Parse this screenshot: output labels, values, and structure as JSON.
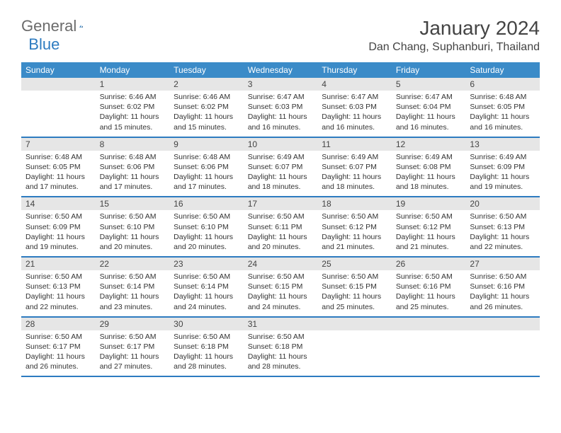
{
  "logo": {
    "general": "General",
    "blue": "Blue"
  },
  "title": "January 2024",
  "location": "Dan Chang, Suphanburi, Thailand",
  "day_names": [
    "Sunday",
    "Monday",
    "Tuesday",
    "Wednesday",
    "Thursday",
    "Friday",
    "Saturday"
  ],
  "colors": {
    "header_bg": "#3b8bc8",
    "header_text": "#ffffff",
    "daynum_bg": "#e6e6e6",
    "week_border": "#2d7bc0",
    "text": "#333333"
  },
  "weeks": [
    [
      {
        "num": "",
        "lines": []
      },
      {
        "num": "1",
        "lines": [
          "Sunrise: 6:46 AM",
          "Sunset: 6:02 PM",
          "Daylight: 11 hours and 15 minutes."
        ]
      },
      {
        "num": "2",
        "lines": [
          "Sunrise: 6:46 AM",
          "Sunset: 6:02 PM",
          "Daylight: 11 hours and 15 minutes."
        ]
      },
      {
        "num": "3",
        "lines": [
          "Sunrise: 6:47 AM",
          "Sunset: 6:03 PM",
          "Daylight: 11 hours and 16 minutes."
        ]
      },
      {
        "num": "4",
        "lines": [
          "Sunrise: 6:47 AM",
          "Sunset: 6:03 PM",
          "Daylight: 11 hours and 16 minutes."
        ]
      },
      {
        "num": "5",
        "lines": [
          "Sunrise: 6:47 AM",
          "Sunset: 6:04 PM",
          "Daylight: 11 hours and 16 minutes."
        ]
      },
      {
        "num": "6",
        "lines": [
          "Sunrise: 6:48 AM",
          "Sunset: 6:05 PM",
          "Daylight: 11 hours and 16 minutes."
        ]
      }
    ],
    [
      {
        "num": "7",
        "lines": [
          "Sunrise: 6:48 AM",
          "Sunset: 6:05 PM",
          "Daylight: 11 hours and 17 minutes."
        ]
      },
      {
        "num": "8",
        "lines": [
          "Sunrise: 6:48 AM",
          "Sunset: 6:06 PM",
          "Daylight: 11 hours and 17 minutes."
        ]
      },
      {
        "num": "9",
        "lines": [
          "Sunrise: 6:48 AM",
          "Sunset: 6:06 PM",
          "Daylight: 11 hours and 17 minutes."
        ]
      },
      {
        "num": "10",
        "lines": [
          "Sunrise: 6:49 AM",
          "Sunset: 6:07 PM",
          "Daylight: 11 hours and 18 minutes."
        ]
      },
      {
        "num": "11",
        "lines": [
          "Sunrise: 6:49 AM",
          "Sunset: 6:07 PM",
          "Daylight: 11 hours and 18 minutes."
        ]
      },
      {
        "num": "12",
        "lines": [
          "Sunrise: 6:49 AM",
          "Sunset: 6:08 PM",
          "Daylight: 11 hours and 18 minutes."
        ]
      },
      {
        "num": "13",
        "lines": [
          "Sunrise: 6:49 AM",
          "Sunset: 6:09 PM",
          "Daylight: 11 hours and 19 minutes."
        ]
      }
    ],
    [
      {
        "num": "14",
        "lines": [
          "Sunrise: 6:50 AM",
          "Sunset: 6:09 PM",
          "Daylight: 11 hours and 19 minutes."
        ]
      },
      {
        "num": "15",
        "lines": [
          "Sunrise: 6:50 AM",
          "Sunset: 6:10 PM",
          "Daylight: 11 hours and 20 minutes."
        ]
      },
      {
        "num": "16",
        "lines": [
          "Sunrise: 6:50 AM",
          "Sunset: 6:10 PM",
          "Daylight: 11 hours and 20 minutes."
        ]
      },
      {
        "num": "17",
        "lines": [
          "Sunrise: 6:50 AM",
          "Sunset: 6:11 PM",
          "Daylight: 11 hours and 20 minutes."
        ]
      },
      {
        "num": "18",
        "lines": [
          "Sunrise: 6:50 AM",
          "Sunset: 6:12 PM",
          "Daylight: 11 hours and 21 minutes."
        ]
      },
      {
        "num": "19",
        "lines": [
          "Sunrise: 6:50 AM",
          "Sunset: 6:12 PM",
          "Daylight: 11 hours and 21 minutes."
        ]
      },
      {
        "num": "20",
        "lines": [
          "Sunrise: 6:50 AM",
          "Sunset: 6:13 PM",
          "Daylight: 11 hours and 22 minutes."
        ]
      }
    ],
    [
      {
        "num": "21",
        "lines": [
          "Sunrise: 6:50 AM",
          "Sunset: 6:13 PM",
          "Daylight: 11 hours and 22 minutes."
        ]
      },
      {
        "num": "22",
        "lines": [
          "Sunrise: 6:50 AM",
          "Sunset: 6:14 PM",
          "Daylight: 11 hours and 23 minutes."
        ]
      },
      {
        "num": "23",
        "lines": [
          "Sunrise: 6:50 AM",
          "Sunset: 6:14 PM",
          "Daylight: 11 hours and 24 minutes."
        ]
      },
      {
        "num": "24",
        "lines": [
          "Sunrise: 6:50 AM",
          "Sunset: 6:15 PM",
          "Daylight: 11 hours and 24 minutes."
        ]
      },
      {
        "num": "25",
        "lines": [
          "Sunrise: 6:50 AM",
          "Sunset: 6:15 PM",
          "Daylight: 11 hours and 25 minutes."
        ]
      },
      {
        "num": "26",
        "lines": [
          "Sunrise: 6:50 AM",
          "Sunset: 6:16 PM",
          "Daylight: 11 hours and 25 minutes."
        ]
      },
      {
        "num": "27",
        "lines": [
          "Sunrise: 6:50 AM",
          "Sunset: 6:16 PM",
          "Daylight: 11 hours and 26 minutes."
        ]
      }
    ],
    [
      {
        "num": "28",
        "lines": [
          "Sunrise: 6:50 AM",
          "Sunset: 6:17 PM",
          "Daylight: 11 hours and 26 minutes."
        ]
      },
      {
        "num": "29",
        "lines": [
          "Sunrise: 6:50 AM",
          "Sunset: 6:17 PM",
          "Daylight: 11 hours and 27 minutes."
        ]
      },
      {
        "num": "30",
        "lines": [
          "Sunrise: 6:50 AM",
          "Sunset: 6:18 PM",
          "Daylight: 11 hours and 28 minutes."
        ]
      },
      {
        "num": "31",
        "lines": [
          "Sunrise: 6:50 AM",
          "Sunset: 6:18 PM",
          "Daylight: 11 hours and 28 minutes."
        ]
      },
      {
        "num": "",
        "lines": []
      },
      {
        "num": "",
        "lines": []
      },
      {
        "num": "",
        "lines": []
      }
    ]
  ]
}
